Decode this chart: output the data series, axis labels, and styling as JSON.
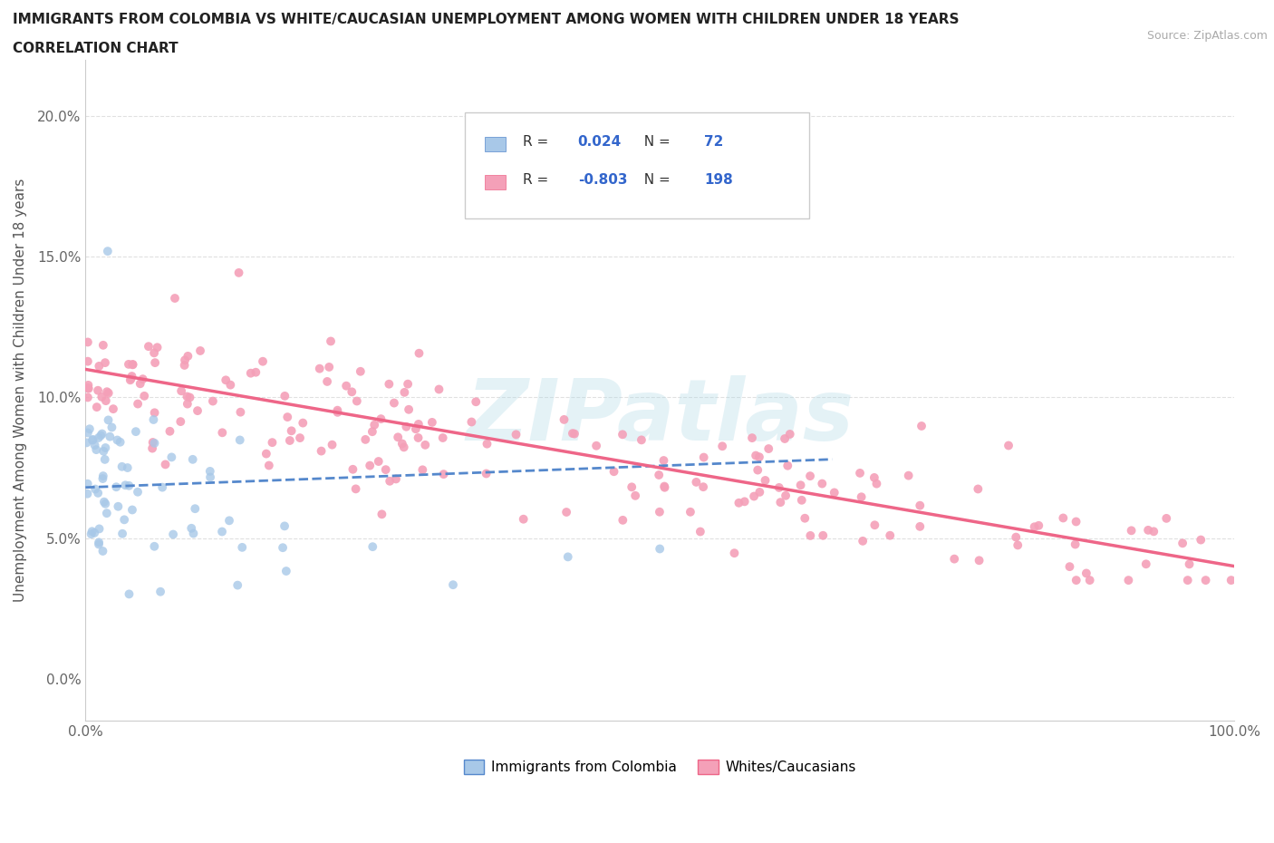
{
  "title": "IMMIGRANTS FROM COLOMBIA VS WHITE/CAUCASIAN UNEMPLOYMENT AMONG WOMEN WITH CHILDREN UNDER 18 YEARS",
  "subtitle": "CORRELATION CHART",
  "source": "Source: ZipAtlas.com",
  "ylabel": "Unemployment Among Women with Children Under 18 years",
  "xlim": [
    0,
    100
  ],
  "ylim": [
    -1.5,
    22
  ],
  "ytick_vals": [
    0,
    5,
    10,
    15,
    20
  ],
  "ytick_labels": [
    "0.0%",
    "5.0%",
    "10.0%",
    "15.0%",
    "20.0%"
  ],
  "xtick_vals": [
    0,
    100
  ],
  "xtick_labels": [
    "0.0%",
    "100.0%"
  ],
  "r_colombia": "0.024",
  "n_colombia": "72",
  "r_white": "-0.803",
  "n_white": "198",
  "blue_scatter_color": "#a8c8e8",
  "pink_scatter_color": "#f4a0b8",
  "blue_line_color": "#5588cc",
  "pink_line_color": "#ee6688",
  "legend_label_colombia": "Immigrants from Colombia",
  "legend_label_white": "Whites/Caucasians",
  "watermark": "ZIPatlas",
  "background_color": "#ffffff",
  "grid_color": "#e0e0e0",
  "title_fontsize": 11,
  "axis_label_fontsize": 11,
  "tick_fontsize": 11,
  "blue_trend_x": [
    0,
    65
  ],
  "blue_trend_y": [
    6.8,
    7.8
  ],
  "pink_trend_x": [
    0,
    100
  ],
  "pink_trend_y": [
    11.0,
    4.0
  ]
}
